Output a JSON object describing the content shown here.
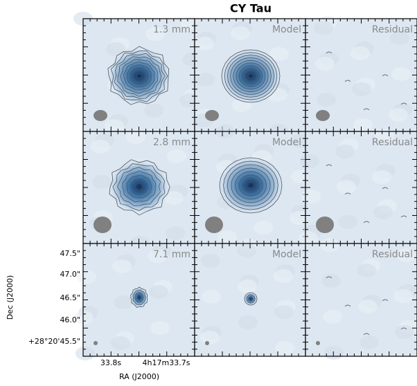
{
  "title": "CY Tau",
  "panels": [
    [
      "1.3 mm",
      "Model",
      "Residual"
    ],
    [
      "2.8 mm",
      "Model",
      "Residual"
    ],
    [
      "7.1 mm",
      "Model",
      "Residual"
    ]
  ],
  "y_axis": {
    "label": "Dec (J2000)",
    "ticks": [
      "47.5\"",
      "47.0\"",
      "46.5\"",
      "46.0\"",
      "+28°20'45.5\""
    ]
  },
  "x_axis": {
    "label": "RA (J2000)",
    "ticks": [
      "33.8s",
      "4h17m33.7s"
    ]
  }
}
